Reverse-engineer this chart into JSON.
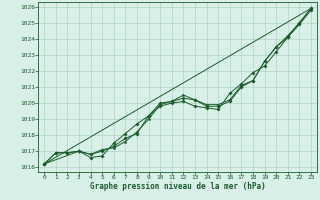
{
  "title": "Graphe pression niveau de la mer (hPa)",
  "background_color": "#d8f0e8",
  "grid_color": "#a8ccbc",
  "line_color": "#1a5c2a",
  "x_ticks": [
    0,
    1,
    2,
    3,
    4,
    5,
    6,
    7,
    8,
    9,
    10,
    11,
    12,
    13,
    14,
    15,
    16,
    17,
    18,
    19,
    20,
    21,
    22,
    23
  ],
  "y_ticks": [
    1016,
    1017,
    1018,
    1019,
    1020,
    1021,
    1022,
    1023,
    1024,
    1025,
    1026
  ],
  "ylim": [
    1015.7,
    1026.3
  ],
  "xlim": [
    -0.5,
    23.5
  ],
  "series": [
    {
      "x": [
        0,
        1,
        2,
        3,
        4,
        5,
        6,
        7,
        8,
        9,
        10,
        11,
        12,
        13,
        14,
        15,
        16,
        17,
        18,
        19,
        20,
        21,
        22,
        23
      ],
      "y": [
        1016.2,
        1016.9,
        1016.9,
        1017.0,
        1016.8,
        1017.0,
        1017.3,
        1017.8,
        1018.1,
        1019.2,
        1020.0,
        1020.1,
        1020.3,
        1020.2,
        1019.8,
        1019.8,
        1020.1,
        1021.0,
        1021.4,
        1022.6,
        1023.5,
        1024.1,
        1024.9,
        1025.8
      ],
      "marker": "D",
      "ms": 1.8,
      "lw": 0.7
    },
    {
      "x": [
        0,
        1,
        2,
        3,
        4,
        5,
        6,
        7,
        8,
        9,
        10,
        11,
        12,
        13,
        14,
        15,
        16,
        17,
        18,
        19,
        20,
        21,
        22,
        23
      ],
      "y": [
        1016.2,
        1016.9,
        1016.9,
        1017.0,
        1016.6,
        1016.7,
        1017.5,
        1018.1,
        1018.7,
        1019.2,
        1019.8,
        1020.0,
        1020.1,
        1019.8,
        1019.7,
        1019.6,
        1020.6,
        1021.2,
        1021.9,
        1022.3,
        1023.2,
        1024.1,
        1025.0,
        1025.9
      ],
      "marker": "D",
      "ms": 1.8,
      "lw": 0.7
    },
    {
      "x": [
        0,
        3,
        4,
        5,
        6,
        7,
        8,
        9,
        10,
        11,
        12,
        13,
        14,
        15,
        16,
        17,
        18,
        19,
        20,
        21,
        22,
        23
      ],
      "y": [
        1016.2,
        1017.0,
        1016.8,
        1017.1,
        1017.2,
        1017.6,
        1018.2,
        1019.0,
        1019.9,
        1020.1,
        1020.5,
        1020.2,
        1019.9,
        1019.9,
        1020.2,
        1021.1,
        1021.4,
        1022.6,
        1023.5,
        1024.2,
        1025.0,
        1025.9
      ],
      "marker": "*",
      "ms": 2.5,
      "lw": 0.7
    },
    {
      "x": [
        0,
        23
      ],
      "y": [
        1016.2,
        1025.9
      ],
      "marker": null,
      "ms": 0,
      "lw": 0.7
    }
  ]
}
